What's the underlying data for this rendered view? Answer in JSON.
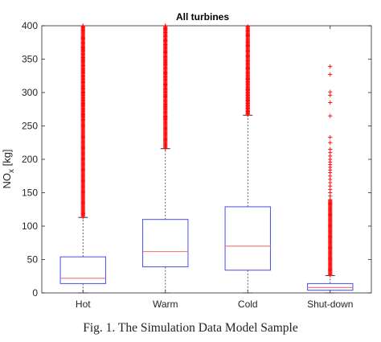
{
  "caption": "Fig. 1. The Simulation Data Model Sample",
  "colors": {
    "box": "#4a4af0",
    "median": "#f08080",
    "outlier": "#ff0000",
    "whisker": "#333333",
    "axis": "#262626"
  },
  "chart_data": {
    "type": "box",
    "title": "All turbines",
    "xlabel": "",
    "ylabel": "NO_x [kg]",
    "ylabel_main": "NO",
    "ylabel_sub": "x",
    "ylabel_unit": " [kg]",
    "ylim": [
      0,
      400
    ],
    "yticks": [
      0,
      50,
      100,
      150,
      200,
      250,
      300,
      350,
      400
    ],
    "categories": [
      "Hot",
      "Warm",
      "Cold",
      "Shut-down"
    ],
    "boxes": [
      {
        "name": "Hot",
        "whisker_low": 0,
        "q1": 14,
        "median": 22,
        "q3": 54,
        "whisker_high": 113,
        "outliers_range": [
          113,
          400
        ],
        "outliers_sparse": [
          400,
          394,
          381,
          374,
          368,
          362,
          358,
          352,
          346,
          340,
          335,
          330,
          325,
          320,
          315,
          310,
          305,
          300,
          296,
          292,
          288,
          284,
          280,
          276,
          272,
          268,
          264,
          260
        ]
      },
      {
        "name": "Warm",
        "whisker_low": 0,
        "q1": 39,
        "median": 62,
        "q3": 110,
        "whisker_high": 216,
        "outliers_range": [
          216,
          400
        ],
        "outliers_sparse": [
          400,
          396,
          390,
          384,
          378,
          372,
          366,
          360,
          354,
          348,
          342,
          336,
          330,
          324,
          318,
          312,
          306,
          300,
          294,
          288,
          282,
          276,
          270,
          264,
          260
        ]
      },
      {
        "name": "Cold",
        "whisker_low": 0,
        "q1": 34,
        "median": 70,
        "q3": 129,
        "whisker_high": 266,
        "outliers_range": [
          266,
          400
        ],
        "outliers_sparse": [
          392,
          385,
          375,
          370,
          362,
          355,
          348,
          342,
          336,
          330,
          325,
          320,
          316,
          312,
          308,
          304,
          300,
          296,
          292,
          288,
          284,
          280,
          276,
          272,
          268
        ]
      },
      {
        "name": "Shut-down",
        "whisker_low": 0,
        "q1": 4,
        "median": 8,
        "q3": 14,
        "whisker_high": 26,
        "outliers_range": [
          26,
          140
        ],
        "outliers_sparse": [
          339,
          327,
          301,
          296,
          285,
          265,
          233,
          225,
          215,
          210,
          205,
          200,
          196,
          192,
          188,
          184,
          180,
          175,
          170,
          165,
          160,
          155,
          150,
          145
        ]
      }
    ]
  }
}
